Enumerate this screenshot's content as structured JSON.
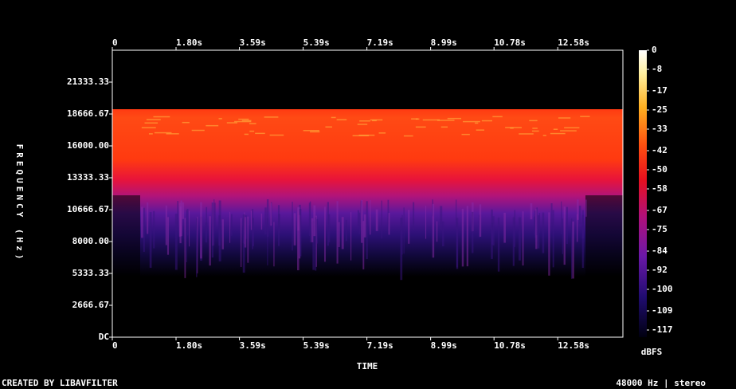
{
  "chart_data": {
    "type": "spectrogram",
    "xlabel": "TIME",
    "ylabel": "FREQUENCY (Hz)",
    "xlim": [
      0,
      14.42
    ],
    "xticks": [
      0,
      {
        "value": 1.8,
        "label": "1.80s"
      },
      {
        "value": 3.59,
        "label": "3.59s"
      },
      {
        "value": 5.39,
        "label": "5.39s"
      },
      {
        "value": 7.19,
        "label": "7.19s"
      },
      {
        "value": 8.99,
        "label": "8.99s"
      },
      {
        "value": 10.78,
        "label": "10.78s"
      },
      {
        "value": 12.58,
        "label": "12.58s"
      }
    ],
    "ylim": [
      0,
      24000
    ],
    "yticks": [
      {
        "value": 0,
        "label": "DC"
      },
      2666.67,
      5333.33,
      {
        "value": 8000,
        "label": "8000.00"
      },
      10666.67,
      13333.33,
      {
        "value": 16000,
        "label": "16000.00"
      },
      18666.67,
      21333.33
    ],
    "colorbar": {
      "label": "dBFS",
      "lim": [
        -120,
        0
      ],
      "ticks": [
        0,
        -8,
        -17,
        -25,
        -33,
        -42,
        -50,
        -58,
        -67,
        -75,
        -84,
        -92,
        -100,
        -109,
        -117
      ]
    },
    "footer_left": "CREATED BY LIBAVFILTER",
    "footer_right": "48000 Hz | stereo"
  }
}
